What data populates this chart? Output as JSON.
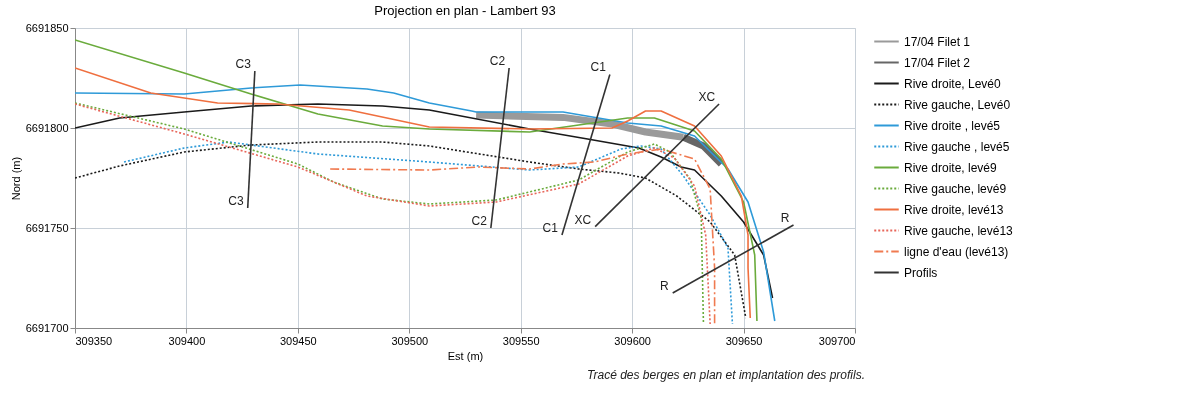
{
  "chart_data": {
    "type": "line",
    "title": "Projection en plan - Lambert 93",
    "xlabel": "Est (m)",
    "ylabel": "Nord (m)",
    "xlim": [
      309350,
      309700
    ],
    "xticks": [
      309350,
      309400,
      309450,
      309500,
      309550,
      309600,
      309650,
      309700
    ],
    "ylim": [
      6691700,
      6691850
    ],
    "yticks": [
      6691700,
      6691750,
      6691800,
      6691850
    ],
    "grid": true,
    "legend": "right",
    "marker": "none",
    "series": [
      {
        "name": "17/04 Filet 1",
        "color": "#9a9a9a",
        "line_style": "solid",
        "x": [
          309530,
          309569,
          309591,
          309606,
          309623
        ],
        "values": [
          6691806.5,
          6691805.3,
          6691802,
          6691798,
          6691795.4
        ]
      },
      {
        "name": "17/04 Filet 2",
        "color": "#666666",
        "line_style": "solid",
        "x": [
          309623,
          309632,
          309640
        ],
        "values": [
          6691795.4,
          6691791,
          6691782
        ]
      },
      {
        "name": "Rive droite, Levé0",
        "color": "#1a1a1a",
        "line_style": "solid",
        "x": [
          309350,
          309370,
          309399,
          309429,
          309459,
          309488,
          309509,
          309554,
          309580,
          309603,
          309613,
          309622,
          309628,
          309640,
          309650,
          309659,
          309663
        ],
        "values": [
          6691800,
          6691805,
          6691808,
          6691811,
          6691812,
          6691811,
          6691809,
          6691799.5,
          6691794.5,
          6691790,
          6691785.5,
          6691780.5,
          6691779,
          6691766,
          6691753,
          6691736.5,
          6691715
        ]
      },
      {
        "name": "Rive gauche, Levé0",
        "color": "#1a1a1a",
        "line_style": "dotted",
        "x": [
          309350,
          309370,
          309399,
          309429,
          309459,
          309488,
          309509,
          309554,
          309576,
          309594,
          309606,
          309620,
          309635,
          309646,
          309651
        ],
        "values": [
          6691775,
          6691781,
          6691788,
          6691791.5,
          6691793,
          6691793,
          6691791,
          6691783,
          6691779.5,
          6691777.5,
          6691775,
          6691766,
          6691753,
          6691736.5,
          6691705
        ]
      },
      {
        "name": "Rive droite , levé5",
        "color": "#2e9ad8",
        "line_style": "solid",
        "x": [
          309350,
          309399,
          309429,
          309451,
          309481,
          309493,
          309509,
          309528,
          309530,
          309569,
          309598,
          309613,
          309628,
          309643,
          309652,
          309659,
          309664
        ],
        "values": [
          6691817.5,
          6691817,
          6691820,
          6691821.5,
          6691819.5,
          6691817.5,
          6691812.5,
          6691808.5,
          6691808,
          6691808,
          6691802.5,
          6691801,
          6691796,
          6691779.5,
          6691763,
          6691738,
          6691703.5
        ]
      },
      {
        "name": "Rive gauche , levé5",
        "color": "#2e9ad8",
        "line_style": "dotted",
        "x": [
          309372,
          309399,
          309419,
          309459,
          309509,
          309554,
          309576,
          309595,
          309604,
          309613,
          309623,
          309635,
          309643,
          309645
        ],
        "values": [
          6691783,
          6691790,
          6691793,
          6691787,
          6691783,
          6691779,
          6691780.5,
          6691789.5,
          6691791,
          6691789.5,
          6691776,
          6691756.5,
          6691740,
          6691702
        ]
      },
      {
        "name": "Rive droite, levé9",
        "color": "#6aab3c",
        "line_style": "solid",
        "x": [
          309350,
          309399,
          309429,
          309459,
          309488,
          309509,
          309554,
          309576,
          309598,
          309610,
          309628,
          309640,
          309650,
          309655,
          309656
        ],
        "values": [
          6691844,
          6691827.5,
          6691817,
          6691807,
          6691801,
          6691799.5,
          6691798,
          6691801.5,
          6691805,
          6691805,
          6691798.5,
          6691784.5,
          6691763,
          6691736.5,
          6691703.5
        ]
      },
      {
        "name": "Rive gauche, levé9",
        "color": "#6aab3c",
        "line_style": "dotted",
        "x": [
          309350,
          309399,
          309450,
          309466,
          309488,
          309509,
          309539,
          309576,
          309598,
          309610,
          309617,
          309626,
          309631,
          309632
        ],
        "values": [
          6691812.5,
          6691799.5,
          6691782,
          6691773,
          6691764.5,
          6691762,
          6691764,
          6691774,
          6691788,
          6691792,
          6691788,
          6691774.5,
          6691755,
          6691702
        ]
      },
      {
        "name": "Rive droite, levé13",
        "color": "#ef6f3f",
        "line_style": "solid",
        "x": [
          309350,
          309384,
          309414,
          309441,
          309473,
          309509,
          309554,
          309591,
          309598,
          309606,
          309613,
          309628,
          309640,
          309649,
          309652,
          309652,
          309653
        ],
        "values": [
          6691830,
          6691817.5,
          6691812.5,
          6691812,
          6691809,
          6691800.5,
          6691799.5,
          6691800,
          6691803.5,
          6691808.5,
          6691808.5,
          6691801,
          6691786,
          6691766,
          6691746.5,
          6691730,
          6691705
        ]
      },
      {
        "name": "Rive gauche, levé13",
        "color": "#e8665a",
        "line_style": "dotted",
        "x": [
          309350,
          309399,
          309450,
          309481,
          309509,
          309539,
          309576,
          309598,
          309610,
          309619,
          309628,
          309633,
          309635
        ],
        "values": [
          6691812,
          6691797,
          6691780.5,
          6691766,
          6691761,
          6691763,
          6691772,
          6691786,
          6691790,
          6691785,
          6691771,
          6691746.5,
          6691702
        ]
      },
      {
        "name": "ligne d'eau (levé13)",
        "color": "#f07a50",
        "line_style": "dashed",
        "x": [
          309464.5,
          309509,
          309531,
          309554,
          309569,
          309583,
          309598,
          309613,
          309628,
          309635,
          309637,
          309637
        ],
        "values": [
          6691779.5,
          6691779,
          6691780.5,
          6691779.5,
          6691782,
          6691783,
          6691787,
          6691789.5,
          6691784.5,
          6691769.5,
          6691730,
          6691702
        ]
      },
      {
        "name": "Profils",
        "color": "#333333",
        "line_style": "solid",
        "x": [
          309430.7,
          309427.5,
          null,
          309544.8,
          309536.6,
          null,
          309590,
          309568.5,
          null,
          309639,
          309583.4,
          null,
          309672.4,
          309618.2
        ],
        "values": [
          6691828.5,
          6691760,
          null,
          6691830,
          6691750,
          null,
          6691826.8,
          6691746.5,
          null,
          6691812,
          6691750.7,
          null,
          6691751.5,
          6691717.5
        ]
      }
    ],
    "annotations": [
      {
        "text": "C3",
        "x": 309430.7,
        "y": 6691828.5
      },
      {
        "text": "C3",
        "x": 309427.5,
        "y": 6691760
      },
      {
        "text": "C2",
        "x": 309544.8,
        "y": 6691830
      },
      {
        "text": "C2",
        "x": 309536.6,
        "y": 6691750
      },
      {
        "text": "C1",
        "x": 309590,
        "y": 6691826.8
      },
      {
        "text": "C1",
        "x": 309568.5,
        "y": 6691746.5
      },
      {
        "text": "XC",
        "x": 309639,
        "y": 6691812
      },
      {
        "text": "XC",
        "x": 309583.4,
        "y": 6691750.7
      },
      {
        "text": "R",
        "x": 309672.4,
        "y": 6691751.5
      },
      {
        "text": "R",
        "x": 309618.2,
        "y": 6691717.5
      },
      "Tracé des berges en plan et implantation des profils."
    ]
  }
}
